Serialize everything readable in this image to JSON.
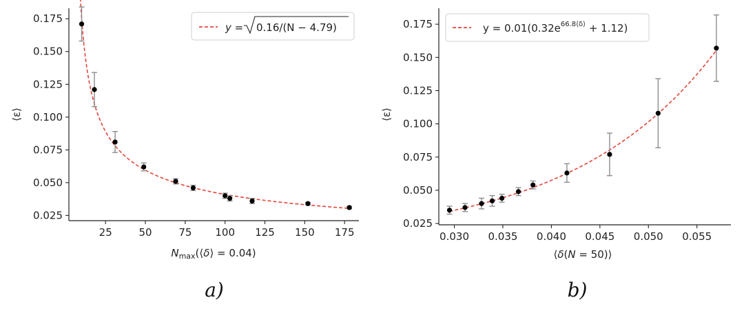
{
  "chart_data": [
    {
      "type": "scatter",
      "panel_label": "a)",
      "xlabel": "N_max(⟨δ⟩ = 0.04)",
      "ylabel": "⟨ε⟩",
      "xlim": [
        2,
        184
      ],
      "ylim": [
        0.021,
        0.183
      ],
      "xticks": [
        25,
        50,
        75,
        100,
        125,
        150,
        175
      ],
      "yticks": [
        0.025,
        0.05,
        0.075,
        0.1,
        0.125,
        0.15,
        0.175
      ],
      "ytick_labels": [
        "0.025",
        "0.050",
        "0.075",
        "0.100",
        "0.125",
        "0.150",
        "0.175"
      ],
      "grid": false,
      "legend_position": "top-right",
      "series": [
        {
          "name": "data",
          "color": "#000000",
          "x": [
            10,
            18,
            31,
            49,
            69,
            80,
            100,
            103,
            117,
            152,
            178
          ],
          "y": [
            0.171,
            0.121,
            0.081,
            0.062,
            0.051,
            0.046,
            0.04,
            0.038,
            0.036,
            0.034,
            0.031
          ],
          "err": [
            0.013,
            0.013,
            0.008,
            0.003,
            0.002,
            0.002,
            0.002,
            0.002,
            0.002,
            0.001,
            0.001
          ]
        }
      ],
      "fit": {
        "color": "#e0453a",
        "legend_pre": "y = ",
        "legend_sqrt": "0.16/(N − 4.79)",
        "a": 0.16,
        "b": 4.79,
        "x_range": [
          9,
          178
        ]
      }
    },
    {
      "type": "scatter",
      "panel_label": "b)",
      "xlabel": "⟨δ(N = 50)⟩",
      "ylabel": "⟨ε⟩",
      "xlim": [
        0.0284,
        0.0585
      ],
      "ylim": [
        0.024,
        0.187
      ],
      "xticks": [
        0.03,
        0.035,
        0.04,
        0.045,
        0.05,
        0.055
      ],
      "xtick_labels": [
        "0.030",
        "0.035",
        "0.040",
        "0.045",
        "0.050",
        "0.055"
      ],
      "yticks": [
        0.025,
        0.05,
        0.075,
        0.1,
        0.125,
        0.15,
        0.175
      ],
      "ytick_labels": [
        "0.025",
        "0.050",
        "0.075",
        "0.100",
        "0.125",
        "0.150",
        "0.175"
      ],
      "grid": false,
      "legend_position": "top-left",
      "series": [
        {
          "name": "data",
          "color": "#000000",
          "x": [
            0.0295,
            0.0311,
            0.0328,
            0.0339,
            0.0349,
            0.0366,
            0.0381,
            0.0416,
            0.046,
            0.051,
            0.057
          ],
          "y": [
            0.035,
            0.037,
            0.04,
            0.042,
            0.044,
            0.049,
            0.054,
            0.063,
            0.077,
            0.108,
            0.157
          ],
          "err": [
            0.003,
            0.003,
            0.004,
            0.004,
            0.003,
            0.003,
            0.003,
            0.007,
            0.016,
            0.026,
            0.025
          ]
        }
      ],
      "fit": {
        "color": "#e0453a",
        "legend_pre": "y = 0.01(0.32e",
        "legend_sup": "66.8⟨δ⟩",
        "legend_post": " + 1.12)",
        "a": 0.01,
        "b": 0.32,
        "c": 66.8,
        "d": 1.12,
        "x_range": [
          0.0295,
          0.057
        ]
      }
    }
  ]
}
